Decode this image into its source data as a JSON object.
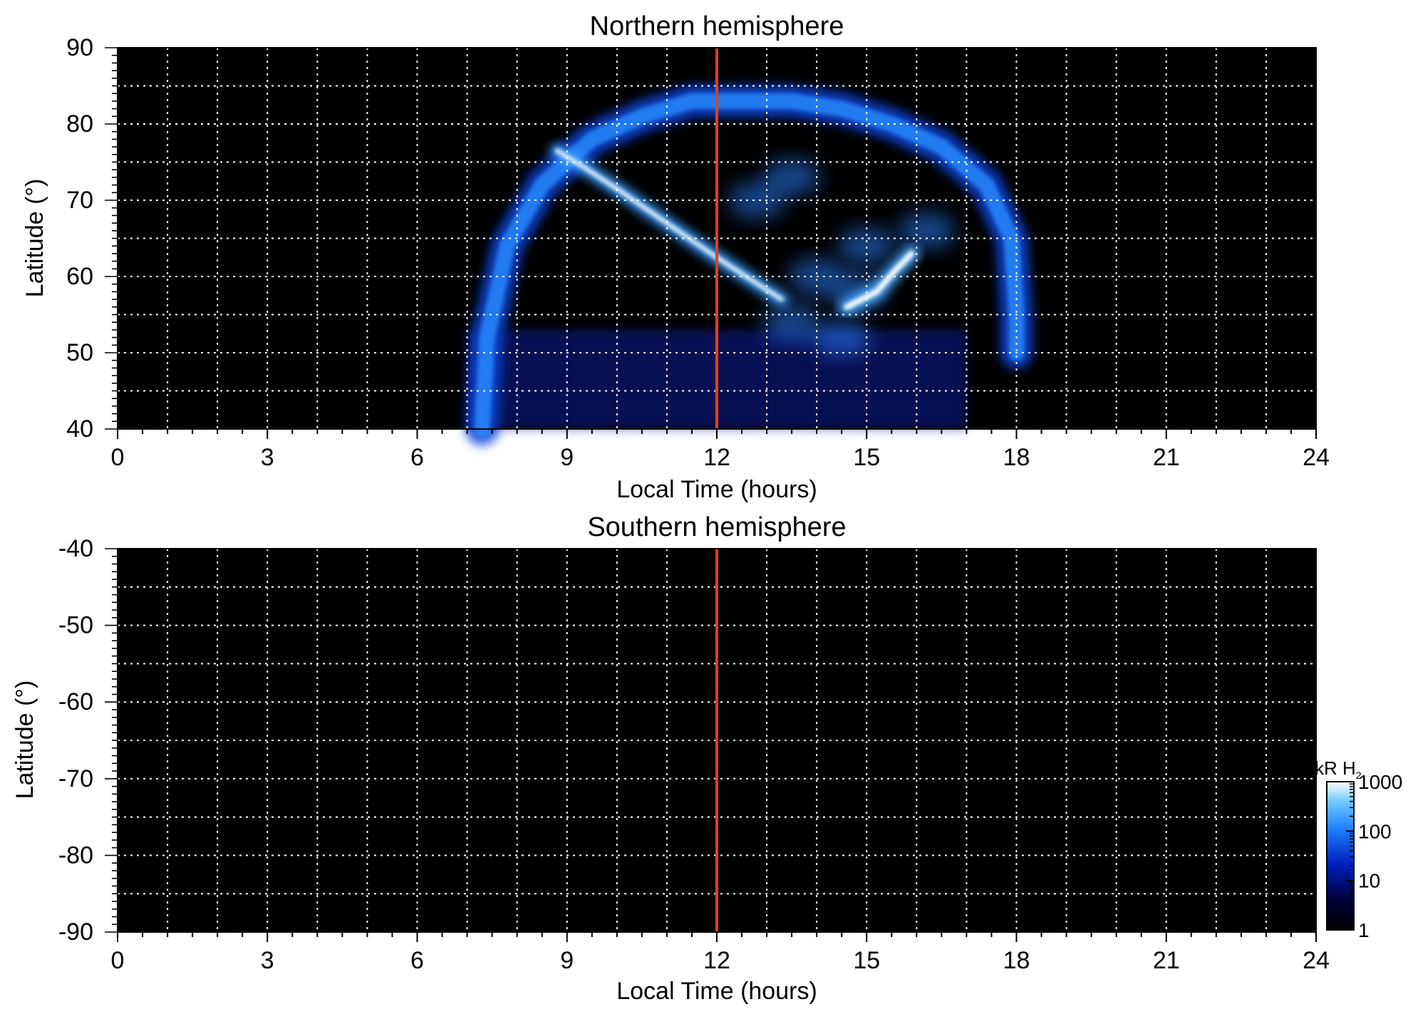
{
  "colors": {
    "background": "#000000",
    "grid": "#ffffff",
    "reference_line": "#e0401b",
    "colormap": [
      "#000000",
      "#00003a",
      "#0020c0",
      "#1e7fff",
      "#6cc6ff",
      "#ffffff"
    ]
  },
  "chart_data": [
    {
      "type": "heatmap",
      "title": "Northern hemisphere",
      "xlabel": "Local Time (hours)",
      "ylabel": "Latitude (°)",
      "xlim": [
        0,
        24
      ],
      "ylim": [
        40,
        90
      ],
      "xticks": [
        0,
        3,
        6,
        9,
        12,
        15,
        18,
        21,
        24
      ],
      "xtick_labels": [
        "0",
        "3",
        "6",
        "9",
        "12",
        "15",
        "18",
        "21",
        "24"
      ],
      "yticks": [
        40,
        50,
        60,
        70,
        80,
        90
      ],
      "ytick_labels": [
        "40",
        "50",
        "60",
        "70",
        "80",
        "90"
      ],
      "grid": true,
      "reference_line_x": 12,
      "emission": {
        "main_oval": [
          [
            7.3,
            40
          ],
          [
            7.4,
            52
          ],
          [
            7.8,
            64
          ],
          [
            8.5,
            72
          ],
          [
            9.5,
            78
          ],
          [
            10.5,
            81
          ],
          [
            11.5,
            83
          ],
          [
            12.5,
            83
          ],
          [
            13.5,
            83
          ],
          [
            14.5,
            82
          ],
          [
            15.5,
            80
          ],
          [
            16.5,
            77
          ],
          [
            17.4,
            72
          ],
          [
            17.9,
            65
          ],
          [
            18.0,
            55
          ],
          [
            18.0,
            50
          ]
        ],
        "bright_arc": [
          [
            8.8,
            76.5
          ],
          [
            9.3,
            74.5
          ],
          [
            10.0,
            71.5
          ],
          [
            11.0,
            67
          ],
          [
            12.0,
            62.5
          ],
          [
            12.7,
            59.5
          ],
          [
            13.3,
            57
          ]
        ],
        "dawn_spot": [
          [
            14.6,
            56
          ],
          [
            15.2,
            58
          ],
          [
            15.6,
            61
          ],
          [
            15.9,
            63
          ]
        ],
        "patch_centers": [
          [
            13.5,
            54
          ],
          [
            14.5,
            52
          ],
          [
            14.0,
            60
          ],
          [
            15.0,
            64
          ],
          [
            12.8,
            70
          ],
          [
            13.5,
            73
          ],
          [
            16.2,
            66
          ],
          [
            14.8,
            58
          ]
        ],
        "low_latitude_band": {
          "x_range": [
            7.0,
            17.0
          ],
          "lat_range": [
            40,
            53
          ]
        }
      }
    },
    {
      "type": "heatmap",
      "title": "Southern hemisphere",
      "xlabel": "Local Time (hours)",
      "ylabel": "Latitude (°)",
      "xlim": [
        0,
        24
      ],
      "ylim": [
        -90,
        -40
      ],
      "xticks": [
        0,
        3,
        6,
        9,
        12,
        15,
        18,
        21,
        24
      ],
      "xtick_labels": [
        "0",
        "3",
        "6",
        "9",
        "12",
        "15",
        "18",
        "21",
        "24"
      ],
      "yticks": [
        -40,
        -50,
        -60,
        -70,
        -80,
        -90
      ],
      "ytick_labels": [
        "-40",
        "-50",
        "-60",
        "-70",
        "-80",
        "-90"
      ],
      "grid": true,
      "reference_line_x": 12,
      "emission": null
    }
  ],
  "colorbar": {
    "label_main": "kR H",
    "label_sub": "2",
    "scale": "log",
    "range": [
      1,
      1000
    ],
    "ticks": [
      1,
      10,
      100,
      1000
    ],
    "tick_labels": [
      "1",
      "10",
      "100",
      "1000"
    ]
  }
}
